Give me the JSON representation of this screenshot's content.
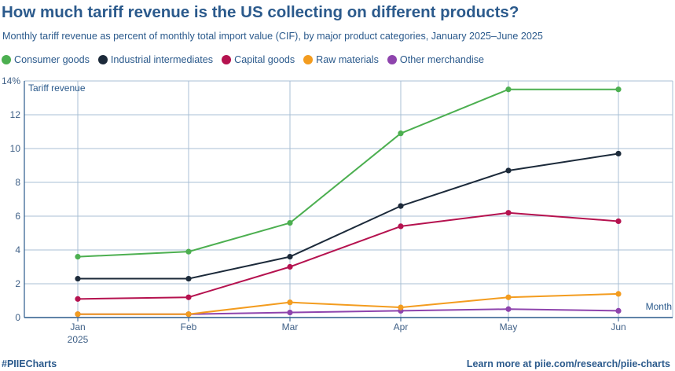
{
  "title": "How much tariff revenue is the US collecting on different products?",
  "subtitle": "Monthly tariff revenue as percent of monthly total import value (CIF), by major product categories, January 2025–June 2025",
  "footer": {
    "hashtag": "#PIIECharts",
    "link_text": "Learn more at piie.com/research/piie-charts"
  },
  "colors": {
    "text": "#2b5a8c",
    "grid": "#a9bfd4",
    "axis": "#2b5a8c"
  },
  "chart_data": {
    "type": "line",
    "categories": [
      "Jan",
      "Feb",
      "Mar",
      "Apr",
      "May",
      "Jun"
    ],
    "x_sublabels": [
      "2025",
      "",
      "",
      "",
      "",
      ""
    ],
    "xlabel": "Month",
    "ylabel": "Tariff revenue",
    "ylim": [
      0,
      14
    ],
    "yticks": [
      0,
      2,
      4,
      6,
      8,
      10,
      12,
      14
    ],
    "ytick_labels": [
      "0",
      "2",
      "4",
      "6",
      "8",
      "10",
      "12",
      "14%"
    ],
    "grid": true,
    "legend_position": "top",
    "series": [
      {
        "name": "Consumer goods",
        "color": "#4caf50",
        "values": [
          3.6,
          3.9,
          5.6,
          10.9,
          13.5,
          13.5
        ]
      },
      {
        "name": "Industrial intermediates",
        "color": "#1c2a3a",
        "values": [
          2.3,
          2.3,
          3.6,
          6.6,
          8.7,
          9.7
        ]
      },
      {
        "name": "Capital goods",
        "color": "#b5124f",
        "values": [
          1.1,
          1.2,
          3.0,
          5.4,
          6.2,
          5.7
        ]
      },
      {
        "name": "Raw materials",
        "color": "#f39c1f",
        "values": [
          0.2,
          0.2,
          0.9,
          0.6,
          1.2,
          1.4
        ]
      },
      {
        "name": "Other merchandise",
        "color": "#8e44ad",
        "values": [
          0.2,
          0.2,
          0.3,
          0.4,
          0.5,
          0.4
        ]
      }
    ]
  }
}
